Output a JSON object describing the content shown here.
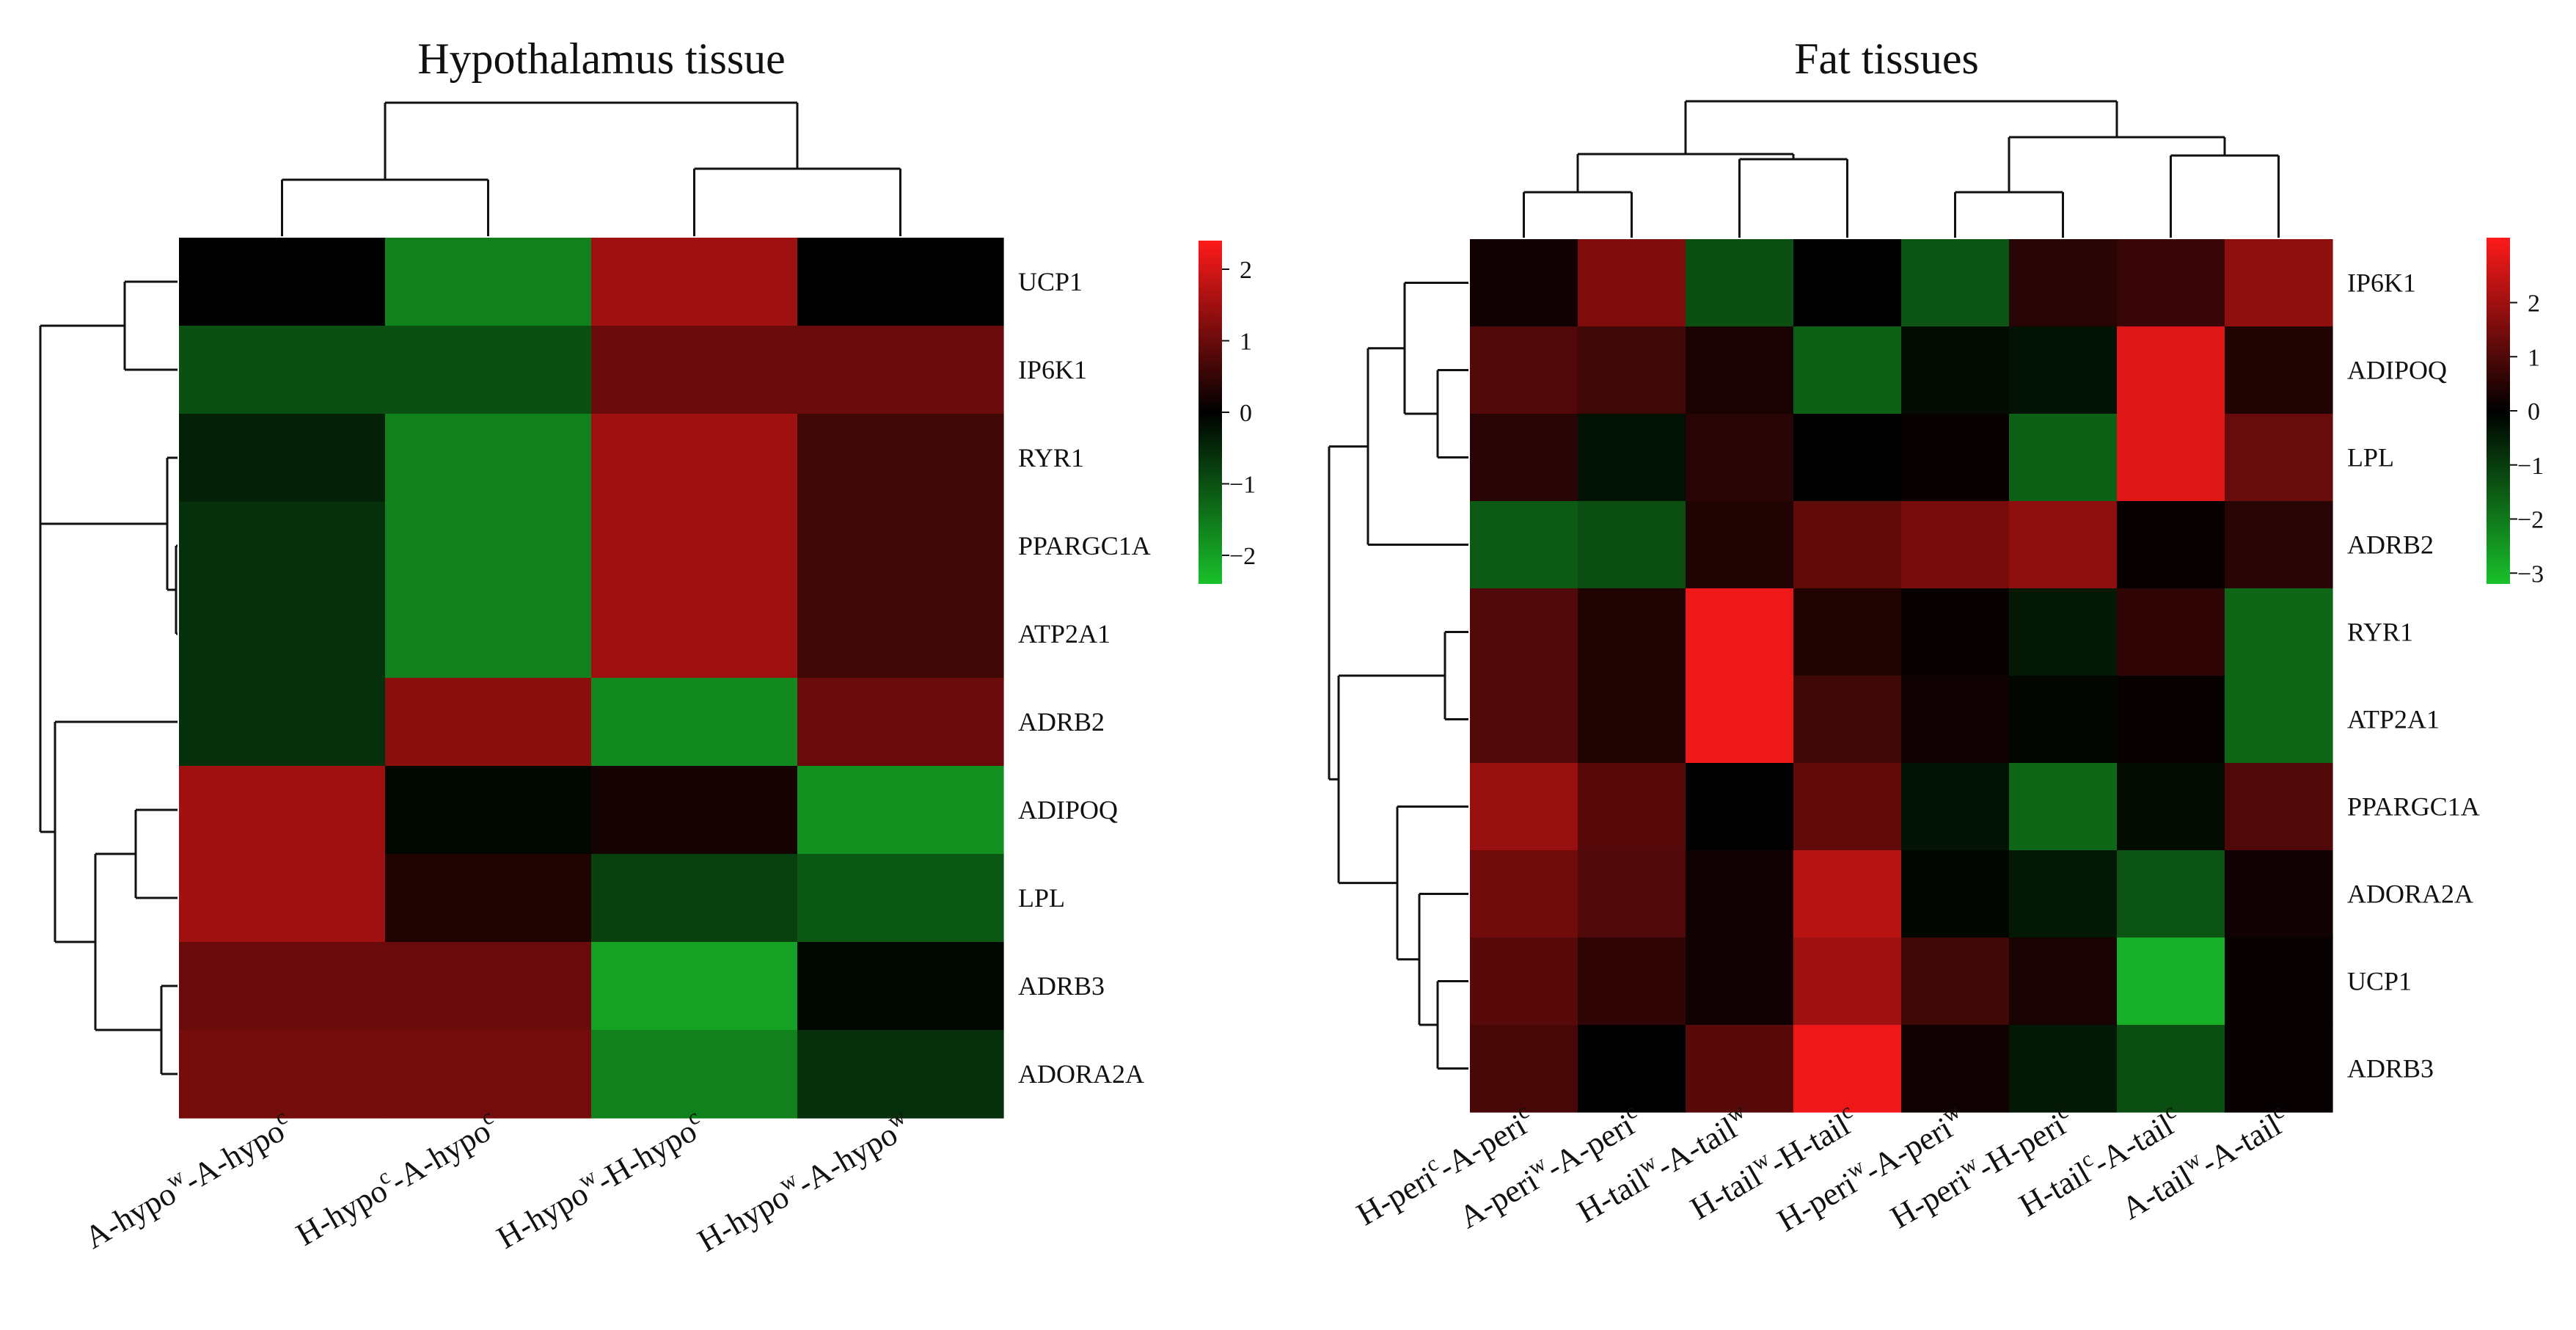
{
  "chart_data": [
    {
      "type": "heatmap",
      "title": "Hypothalamus tissue",
      "columns": [
        {
          "base": "A-hypo",
          "sup1": "w",
          "mid": "-A-hypo",
          "sup2": "c"
        },
        {
          "base": "H-hypo",
          "sup1": "c",
          "mid": "-A-hypo",
          "sup2": "c"
        },
        {
          "base": "H-hypo",
          "sup1": "w",
          "mid": "-H-hypo",
          "sup2": "c"
        },
        {
          "base": "H-hypo",
          "sup1": "w",
          "mid": "-A-hypo",
          "sup2": "w"
        }
      ],
      "rows": [
        "UCP1",
        "IP6K1",
        "RYR1",
        "PPARGC1A",
        "ATP2A1",
        "ADRB2",
        "ADIPOQ",
        "LPL",
        "ADRB3",
        "ADORA2A"
      ],
      "values": [
        [
          0.0,
          -1.6,
          1.5,
          0.0
        ],
        [
          -1.0,
          -1.0,
          1.0,
          1.0
        ],
        [
          -0.4,
          -1.6,
          1.5,
          0.6
        ],
        [
          -0.6,
          -1.6,
          1.5,
          0.6
        ],
        [
          -0.6,
          -1.6,
          1.5,
          0.6
        ],
        [
          -0.6,
          1.3,
          -1.7,
          1.0
        ],
        [
          1.5,
          -0.1,
          0.2,
          -1.8
        ],
        [
          1.5,
          0.3,
          -0.8,
          -1.1
        ],
        [
          1.0,
          1.0,
          -2.0,
          -0.1
        ],
        [
          1.1,
          1.1,
          -1.6,
          -0.6
        ]
      ],
      "color_scale": {
        "min": -2.4,
        "max": 2.4,
        "low_color": "#19c12b",
        "mid_color": "#000000",
        "high_color": "#ff1a1a",
        "ticks": [
          2,
          1,
          0,
          -1,
          -2
        ]
      },
      "row_dendrogram": "((UCP1,IP6K1),(RYR1,(PPARGC1A,ATP2A1)),(ADRB2,((ADIPOQ,LPL),(ADRB3,ADORA2A))))",
      "column_dendrogram": "((A-hypo-A-hypo,H-hypo-A-hypo),(H-hypo-H-hypo,H-hypo-A-hypo(w)))"
    },
    {
      "type": "heatmap",
      "title": "Fat tissues",
      "columns": [
        {
          "base": "H-peri",
          "sup1": "c",
          "mid": "-A-peri",
          "sup2": "c"
        },
        {
          "base": "A-peri",
          "sup1": "w",
          "mid": "-A-peri",
          "sup2": "c"
        },
        {
          "base": "H-tail",
          "sup1": "w",
          "mid": "-A-tail",
          "sup2": "w"
        },
        {
          "base": "H-tail",
          "sup1": "w",
          "mid": "-H-tail",
          "sup2": "c"
        },
        {
          "base": "H-peri",
          "sup1": "w",
          "mid": "-A-peri",
          "sup2": "w"
        },
        {
          "base": "H-peri",
          "sup1": "w",
          "mid": "-H-peri",
          "sup2": "c"
        },
        {
          "base": "H-tail",
          "sup1": "c",
          "mid": "-A-tail",
          "sup2": "c"
        },
        {
          "base": "A-tail",
          "sup1": "w",
          "mid": "-A-tail",
          "sup2": "c"
        }
      ],
      "rows": [
        "IP6K1",
        "ADIPOQ",
        "LPL",
        "ADRB2",
        "RYR1",
        "ATP2A1",
        "PPARGC1A",
        "ADORA2A",
        "UCP1",
        "ADRB3"
      ],
      "values": [
        [
          0.2,
          1.6,
          -1.3,
          0.0,
          -1.4,
          0.5,
          0.7,
          1.8
        ],
        [
          1.0,
          0.8,
          0.3,
          -1.6,
          -0.2,
          -0.3,
          2.8,
          0.4
        ],
        [
          0.5,
          -0.3,
          0.5,
          0.0,
          0.1,
          -1.6,
          2.8,
          1.3
        ],
        [
          -1.5,
          -1.3,
          0.4,
          1.2,
          1.5,
          1.8,
          0.1,
          0.5
        ],
        [
          1.0,
          0.4,
          3.0,
          0.4,
          0.1,
          -0.4,
          0.6,
          -1.7
        ],
        [
          1.0,
          0.4,
          3.0,
          0.8,
          0.2,
          -0.1,
          0.1,
          -1.7
        ],
        [
          1.9,
          1.1,
          0.0,
          1.2,
          -0.3,
          -1.7,
          -0.2,
          1.0
        ],
        [
          1.4,
          1.0,
          0.2,
          2.3,
          -0.1,
          -0.4,
          -1.4,
          0.2
        ],
        [
          1.1,
          0.6,
          0.2,
          2.0,
          0.8,
          0.3,
          -2.9,
          0.1
        ],
        [
          0.9,
          0.0,
          1.1,
          3.0,
          0.2,
          -0.4,
          -1.3,
          0.1
        ]
      ],
      "color_scale": {
        "min": -3.2,
        "max": 3.2,
        "low_color": "#19c12b",
        "mid_color": "#000000",
        "high_color": "#ff1a1a",
        "ticks": [
          2,
          1,
          0,
          -1,
          -2,
          -3
        ]
      },
      "row_dendrogram": "(((IP6K1,(ADIPOQ,LPL)),ADRB2),((RYR1,ATP2A1),(PPARGC1A,(ADORA2A,(UCP1,ADRB3)))))",
      "column_dendrogram": "(((H-peri-A-peri,A-peri-A-peri),(H-tail-A-tail,H-tail-H-tail)),((H-peri-A-peri(w),H-peri-H-peri),(H-tail-A-tail(c),A-tail-A-tail)))"
    }
  ]
}
